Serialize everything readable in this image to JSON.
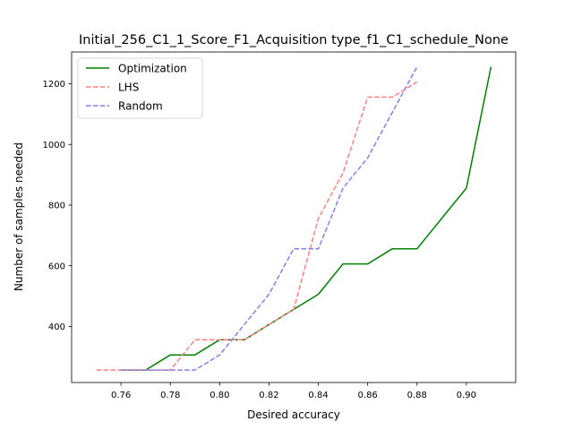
{
  "chart_data": {
    "type": "line",
    "title": "Initial_256_C1_1_Score_F1_Acquisition type_f1_C1_schedule_None",
    "xlabel": "Desired accuracy",
    "ylabel": "Number of samples needed",
    "xlim": [
      0.74,
      0.92
    ],
    "ylim": [
      215,
      1305
    ],
    "xticks": [
      "0.76",
      "0.78",
      "0.80",
      "0.82",
      "0.84",
      "0.86",
      "0.88",
      "0.90"
    ],
    "yticks": [
      "400",
      "600",
      "800",
      "1000",
      "1200"
    ],
    "grid": false,
    "legend_position": "top-left",
    "series": [
      {
        "name": "Optimization",
        "color": "#008000",
        "style": "solid",
        "x": [
          0.76,
          0.77,
          0.78,
          0.79,
          0.8,
          0.81,
          0.82,
          0.83,
          0.84,
          0.85,
          0.86,
          0.87,
          0.88,
          0.89,
          0.9,
          0.91
        ],
        "y": [
          256,
          256,
          306,
          306,
          356,
          356,
          406,
          456,
          506,
          606,
          606,
          656,
          656,
          756,
          856,
          1256
        ]
      },
      {
        "name": "LHS",
        "color": "#ff8080",
        "style": "dashed",
        "x": [
          0.75,
          0.76,
          0.77,
          0.78,
          0.79,
          0.8,
          0.81,
          0.82,
          0.83,
          0.84,
          0.85,
          0.86,
          0.87,
          0.88
        ],
        "y": [
          256,
          256,
          256,
          256,
          356,
          356,
          356,
          406,
          456,
          756,
          906,
          1156,
          1156,
          1206
        ]
      },
      {
        "name": "Random",
        "color": "#8080f0",
        "style": "dashed",
        "x": [
          0.76,
          0.77,
          0.78,
          0.79,
          0.8,
          0.81,
          0.82,
          0.83,
          0.84,
          0.85,
          0.86,
          0.87,
          0.88
        ],
        "y": [
          256,
          256,
          256,
          256,
          306,
          406,
          506,
          656,
          656,
          856,
          956,
          1106,
          1256
        ]
      }
    ]
  }
}
